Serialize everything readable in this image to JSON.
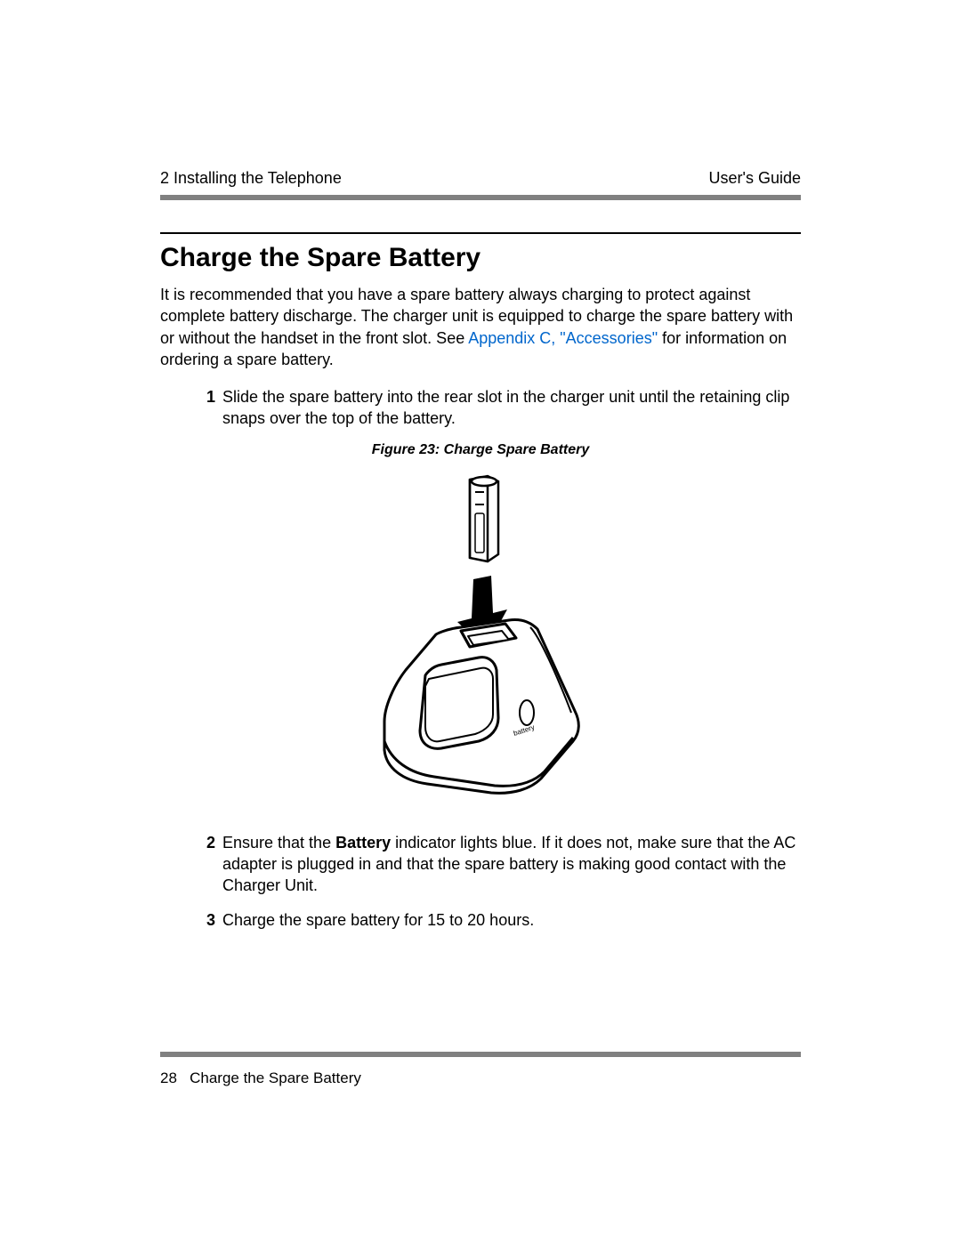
{
  "header": {
    "left": "2 Installing the Telephone",
    "right": "User's Guide"
  },
  "section": {
    "heading": "Charge the Spare Battery",
    "intro_pre": "It is recommended that you have a spare battery always charging to protect against complete battery discharge. The charger unit is equipped to charge the spare battery with or without the handset in the front slot. See ",
    "intro_link": "Appendix C, \"Accessories\"",
    "intro_post": " for information on ordering a spare battery."
  },
  "steps": [
    {
      "num": "1",
      "parts": [
        {
          "t": "text",
          "v": "Slide the spare battery into the rear slot in the charger unit until the retaining clip snaps over the top of the battery."
        }
      ]
    },
    {
      "num": "2",
      "parts": [
        {
          "t": "text",
          "v": "Ensure that the "
        },
        {
          "t": "bold",
          "v": "Battery"
        },
        {
          "t": "text",
          "v": " indicator lights blue. If it does not, make sure that the AC adapter is plugged in and that the spare battery is making good contact with the Charger Unit."
        }
      ]
    },
    {
      "num": "3",
      "parts": [
        {
          "t": "text",
          "v": "Charge the spare battery for 15 to 20 hours."
        }
      ]
    }
  ],
  "figure": {
    "caption": "Figure 23:  Charge Spare Battery",
    "battery_label": "battery",
    "stroke": "#000000",
    "fill": "#ffffff",
    "arrow_fill": "#000000"
  },
  "footer": {
    "page_num": "28",
    "title": "Charge the Spare Battery"
  },
  "colors": {
    "link": "#0066cc",
    "rule": "#808080",
    "text": "#000000"
  }
}
